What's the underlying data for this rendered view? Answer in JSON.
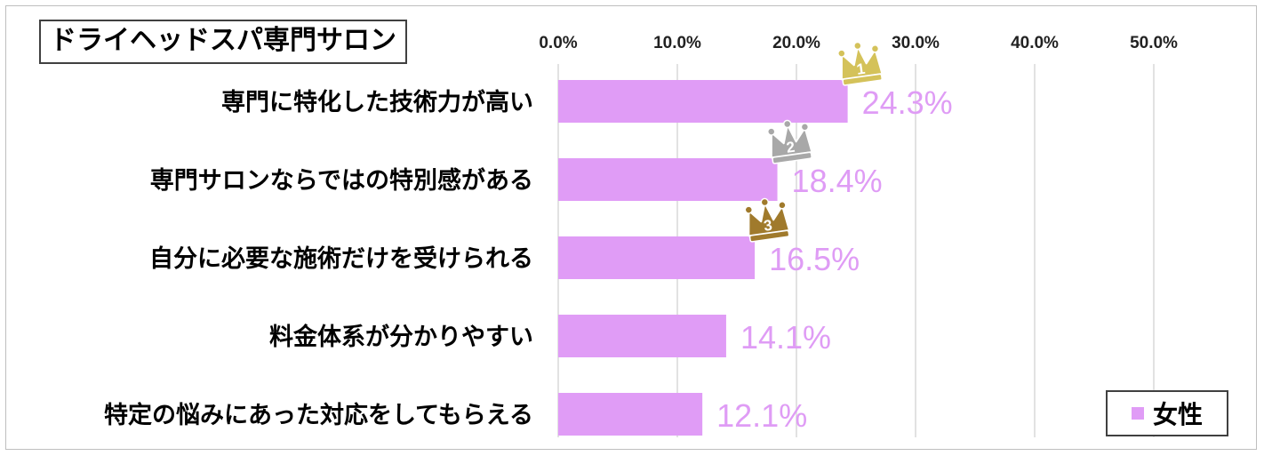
{
  "chart_data": {
    "type": "bar",
    "orientation": "horizontal",
    "title": "ドライヘッドスパ専門サロン",
    "categories": [
      "専門に特化した技術力が高い",
      "専門サロンならではの特別感がある",
      "自分に必要な施術だけを受けられる",
      "料金体系が分かりやすい",
      "特定の悩みにあった対応をしてもらえる"
    ],
    "series": [
      {
        "name": "女性",
        "values": [
          24.3,
          18.4,
          16.5,
          14.1,
          12.1
        ],
        "color": "#e09cf6"
      }
    ],
    "data_labels": [
      "24.3%",
      "18.4%",
      "16.5%",
      "14.1%",
      "12.1%"
    ],
    "x_ticks": [
      "0.0%",
      "10.0%",
      "20.0%",
      "30.0%",
      "40.0%",
      "50.0%"
    ],
    "xlim": [
      0,
      50
    ],
    "x_axis_position": "top",
    "grid": true,
    "legend": "bottom-right",
    "rank_badges": [
      {
        "rank": "1",
        "color": "#d4c25a"
      },
      {
        "rank": "2",
        "color": "#a8a8a8"
      },
      {
        "rank": "3",
        "color": "#a07a2c"
      }
    ]
  }
}
